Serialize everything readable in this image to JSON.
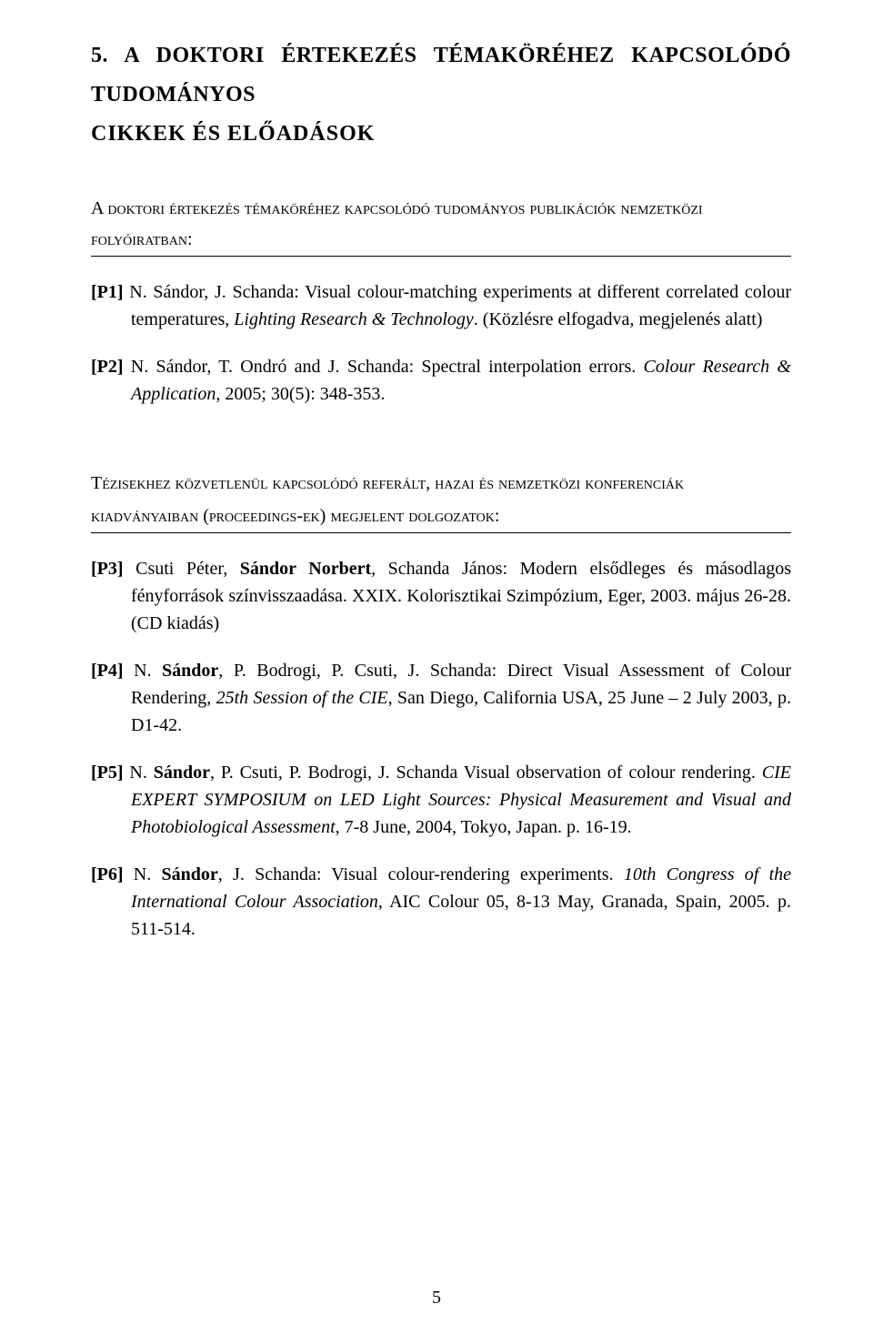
{
  "sectionTitle": {
    "line1": "5. A DOKTORI ÉRTEKEZÉS TÉMAKÖRÉHEZ KAPCSOLÓDÓ TUDOMÁNYOS",
    "line2": "CIKKEK ÉS ELŐADÁSOK"
  },
  "sub1": {
    "l1_pre": "A ",
    "l1_sc": "doktori értekezés témaköréhez kapcsolódó tudományos publikációk nemzetközi",
    "l2_sc": "folyóiratban",
    "l2_post": ":"
  },
  "p1": {
    "tag": "[P1]",
    "author": " N. Sándor, J. Schanda: Visual colour-matching experiments at different correlated colour temperatures, ",
    "ital": "Lighting Research & Technology",
    "tail": ". (Közlésre elfogadva, megjelenés alatt)"
  },
  "p2": {
    "tag": "[P2]",
    "plain": " N. Sándor, T. Ondró and J. Schanda: Spectral interpolation errors. ",
    "ital": "Colour Research & Application",
    "tail": ", 2005; 30(5): 348-353."
  },
  "sub2": {
    "l1_pre": "T",
    "l1_sc": "ézisekhez közvetlenül kapcsolódó referált",
    "l1_mid": ", ",
    "l1_sc2": "hazai és nemzetközi konferenciák",
    "l2_sc": "kiadványaiban ",
    "l2_paren": "(",
    "l2_sc2": "proceedings-ek",
    "l2_paren2": ") ",
    "l2_sc3": "megjelent dolgozatok",
    "l2_post": ":"
  },
  "p3": {
    "tag": "[P3]",
    "pre": " Csuti Péter, ",
    "bold": "Sándor Norbert",
    "post": ", Schanda János: Modern elsődleges és másodlagos fényforrások színvisszaadása. XXIX. Kolorisztikai Szimpózium, Eger, 2003. május 26-28. (CD kiadás)"
  },
  "p4": {
    "tag": "[P4]",
    "pre": " N. ",
    "bold": "Sándor",
    "mid": ", P. Bodrogi, P. Csuti, J. Schanda: Direct Visual Assessment of Colour Rendering, ",
    "ital": "25th Session of the CIE",
    "tail": ", San Diego, California USA, 25 June – 2 July 2003, p. D1-42."
  },
  "p5": {
    "tag": "[P5]",
    "pre": " N. ",
    "bold": "Sándor",
    "mid": ", P. Csuti, P. Bodrogi, J. Schanda Visual observation of colour rendering. ",
    "ital": "CIE EXPERT SYMPOSIUM on LED Light Sources: Physical Measurement and Visual and Photobiological Assessment",
    "tail": ", 7-8 June, 2004, Tokyo, Japan. p. 16-19."
  },
  "p6": {
    "tag": "[P6]",
    "pre": " N. ",
    "bold": "Sándor",
    "mid": ", J. Schanda: Visual colour-rendering experiments. ",
    "ital": "10th Congress of the International Colour Association",
    "tail": ", AIC Colour 05, 8-13 May, Granada, Spain, 2005. p. 511-514."
  },
  "pageNumber": "5"
}
